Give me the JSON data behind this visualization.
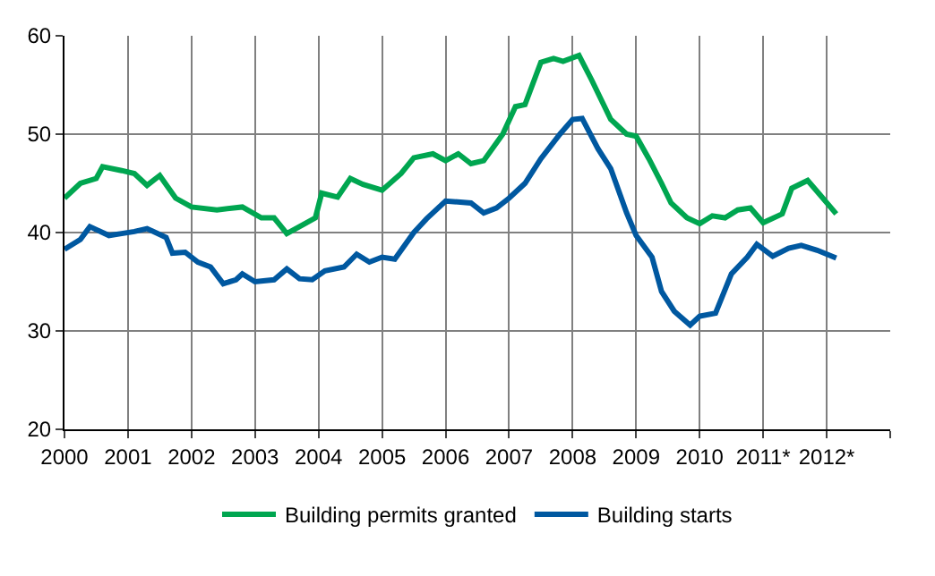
{
  "chart_data": {
    "type": "line",
    "xlim": [
      2000,
      2013
    ],
    "xticks": [
      2000,
      2001,
      2002,
      2003,
      2004,
      2005,
      2006,
      2007,
      2008,
      2009,
      2010,
      {
        "value": 2011,
        "label": "2011*"
      },
      {
        "value": 2012,
        "label": "2012*"
      },
      {
        "value": 2013,
        "label": null
      }
    ],
    "ylim": [
      20,
      60
    ],
    "yticks": [
      20,
      30,
      40,
      50,
      60
    ],
    "grid": true,
    "legend": "bottom",
    "marker": "none",
    "line_style": "solid",
    "series": [
      {
        "name": "Building permits granted",
        "color": "#00a650",
        "x": [
          2000,
          2000.25,
          2000.5,
          2000.6,
          2000.9,
          2001.1,
          2001.3,
          2001.5,
          2001.75,
          2002,
          2002.4,
          2002.8,
          2003.1,
          2003.3,
          2003.5,
          2003.7,
          2003.95,
          2004.05,
          2004.3,
          2004.5,
          2004.7,
          2005,
          2005.3,
          2005.5,
          2005.8,
          2006,
          2006.2,
          2006.4,
          2006.6,
          2006.9,
          2007.1,
          2007.25,
          2007.5,
          2007.7,
          2007.85,
          2008.1,
          2008.3,
          2008.6,
          2008.85,
          2009,
          2009.2,
          2009.4,
          2009.55,
          2009.8,
          2010,
          2010.2,
          2010.4,
          2010.6,
          2010.8,
          2011,
          2011.3,
          2011.45,
          2011.7,
          2011.9,
          2012.15
        ],
        "values": [
          43.5,
          45,
          45.5,
          46.7,
          46.3,
          46,
          44.8,
          45.8,
          43.5,
          42.6,
          42.3,
          42.6,
          41.5,
          41.5,
          39.9,
          40.6,
          41.5,
          44,
          43.6,
          45.5,
          44.9,
          44.3,
          46,
          47.6,
          48,
          47.3,
          48,
          47,
          47.3,
          50,
          52.8,
          53,
          57.3,
          57.7,
          57.4,
          58,
          55.5,
          51.5,
          50,
          49.8,
          47.5,
          45,
          43,
          41.5,
          40.9,
          41.7,
          41.5,
          42.3,
          42.5,
          41,
          41.9,
          44.5,
          45.3,
          43.8,
          41.9
        ]
      },
      {
        "name": "Building starts",
        "color": "#0058a0",
        "x": [
          2000,
          2000.25,
          2000.4,
          2000.7,
          2000.9,
          2001.1,
          2001.3,
          2001.6,
          2001.7,
          2001.9,
          2002.1,
          2002.3,
          2002.5,
          2002.7,
          2002.8,
          2003,
          2003.3,
          2003.5,
          2003.7,
          2003.9,
          2004.1,
          2004.4,
          2004.6,
          2004.8,
          2005,
          2005.2,
          2005.5,
          2005.7,
          2006,
          2006.4,
          2006.6,
          2006.8,
          2007,
          2007.25,
          2007.5,
          2007.8,
          2008,
          2008.15,
          2008.4,
          2008.6,
          2008.85,
          2009,
          2009.25,
          2009.4,
          2009.6,
          2009.85,
          2010,
          2010.25,
          2010.5,
          2010.75,
          2010.9,
          2011.15,
          2011.4,
          2011.6,
          2011.85,
          2012.15
        ],
        "values": [
          38.3,
          39.3,
          40.6,
          39.7,
          39.9,
          40.1,
          40.4,
          39.5,
          37.9,
          38,
          37,
          36.5,
          34.8,
          35.2,
          35.8,
          35,
          35.2,
          36.3,
          35.3,
          35.2,
          36.1,
          36.5,
          37.8,
          37,
          37.5,
          37.3,
          40,
          41.4,
          43.2,
          43,
          42,
          42.5,
          43.5,
          45,
          47.5,
          50,
          51.5,
          51.6,
          48.5,
          46.5,
          42,
          39.7,
          37.5,
          34,
          32,
          30.6,
          31.5,
          31.8,
          35.8,
          37.5,
          38.8,
          37.6,
          38.4,
          38.7,
          38.2,
          37.4
        ]
      }
    ]
  }
}
